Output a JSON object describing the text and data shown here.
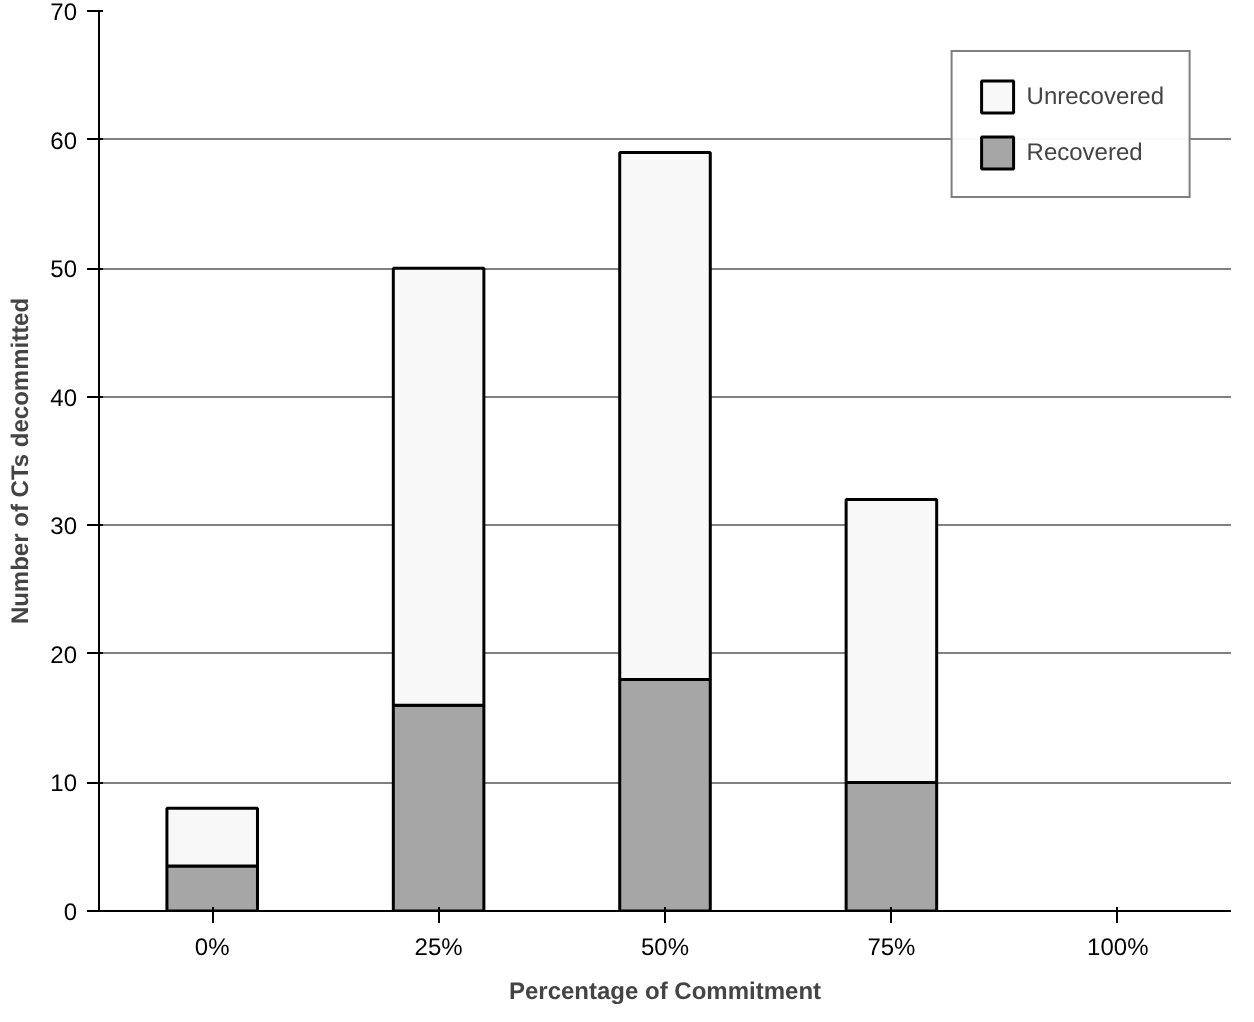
{
  "chart_data": {
    "type": "bar",
    "stacked": true,
    "xlabel": "Percentage of Commitment",
    "ylabel": "Number of CTs decommitted",
    "categories": [
      "0%",
      "25%",
      "50%",
      "75%",
      "100%"
    ],
    "series": [
      {
        "name": "Recovered",
        "color": "#a6a6a6",
        "values": [
          3.5,
          16,
          18,
          10,
          0
        ]
      },
      {
        "name": "Unrecovered",
        "color": "#f8f8f8",
        "values": [
          4.5,
          34,
          41,
          22,
          0
        ]
      }
    ],
    "ylim": [
      0,
      70
    ],
    "yticks": [
      0,
      10,
      20,
      30,
      40,
      50,
      60,
      70
    ],
    "grid": "y",
    "legend": "top right"
  }
}
